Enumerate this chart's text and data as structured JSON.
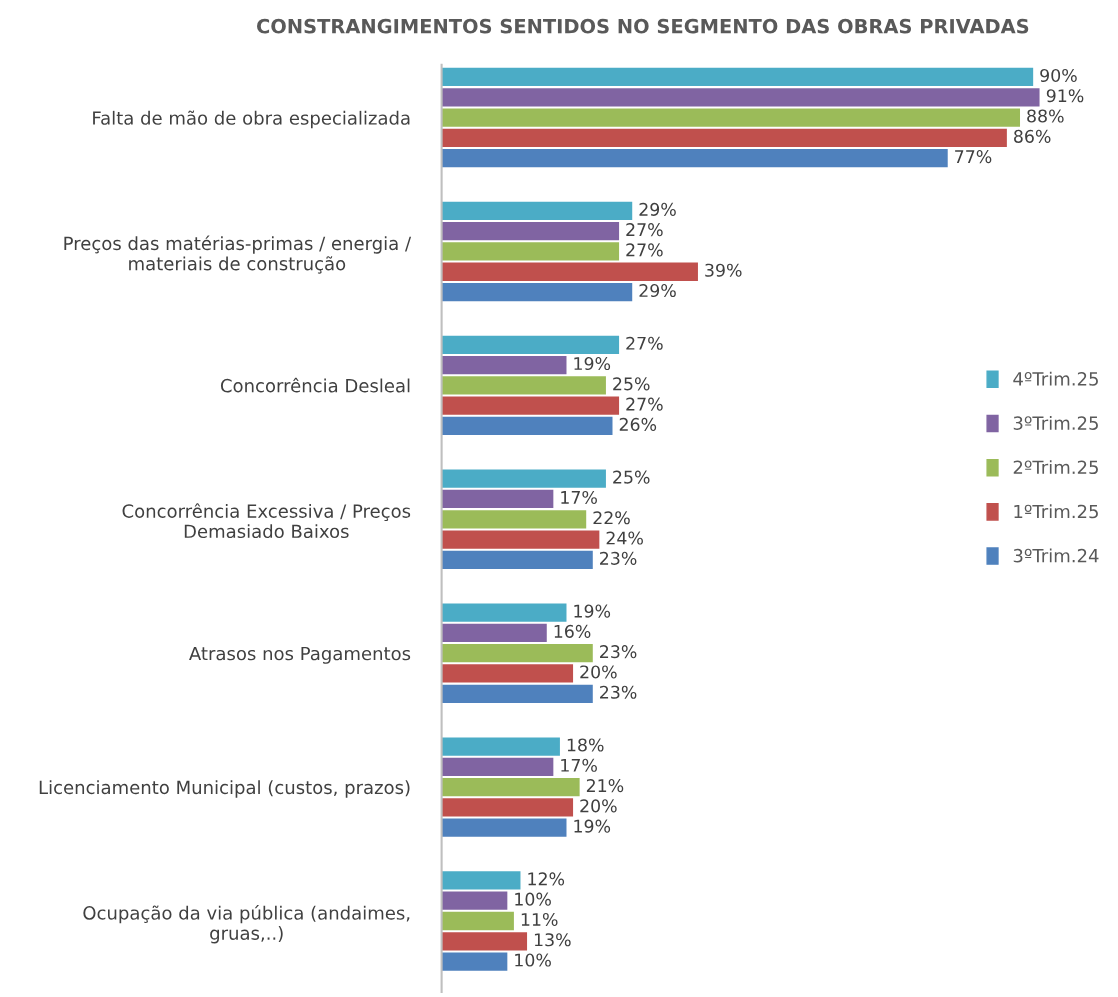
{
  "chart_data": {
    "type": "bar",
    "orientation": "horizontal",
    "title": "CONSTRANGIMENTOS SENTIDOS NO SEGMENTO DAS OBRAS PRIVADAS",
    "categories": [
      "Falta de mão de obra especializada",
      "Preços das matérias-primas / energia /\nmateriais de construção",
      "Concorrência Desleal",
      "Concorrência Excessiva / Preços\nDemasiado Baixos",
      "Atrasos nos Pagamentos",
      "Licenciamento Municipal (custos, prazos)",
      "Ocupação da via pública (andaimes,\ngruas,..)"
    ],
    "data_labels": true,
    "series": [
      {
        "name": "4ºTrim.25",
        "color": "#4bacc6",
        "values": [
          90,
          29,
          27,
          25,
          19,
          18,
          12
        ],
        "value_labels": [
          "90%",
          "29%",
          "27%",
          "25%",
          "19%",
          "18%",
          "12%"
        ]
      },
      {
        "name": "3ºTrim.25",
        "color": "#8064a2",
        "values": [
          91,
          27,
          19,
          17,
          16,
          17,
          10
        ],
        "value_labels": [
          "91%",
          "27%",
          "19%",
          "17%",
          "16%",
          "17%",
          "10%"
        ]
      },
      {
        "name": "2ºTrim.25",
        "color": "#9bbb59",
        "values": [
          88,
          27,
          25,
          22,
          23,
          21,
          11
        ],
        "value_labels": [
          "88%",
          "27%",
          "25%",
          "22%",
          "23%",
          "21%",
          "11%"
        ]
      },
      {
        "name": "1ºTrim.25",
        "color": "#c0504d",
        "values": [
          86,
          39,
          27,
          24,
          20,
          20,
          13
        ],
        "value_labels": [
          "86%",
          "39%",
          "27%",
          "24%",
          "20%",
          "20%",
          "13%"
        ]
      },
      {
        "name": "3ºTrim.24",
        "color": "#4f81bd",
        "values": [
          77,
          29,
          26,
          23,
          23,
          19,
          10
        ],
        "value_labels": [
          "77%",
          "29%",
          "26%",
          "23%",
          "23%",
          "19%",
          "10%"
        ]
      }
    ],
    "legend": "right",
    "grid": false
  }
}
